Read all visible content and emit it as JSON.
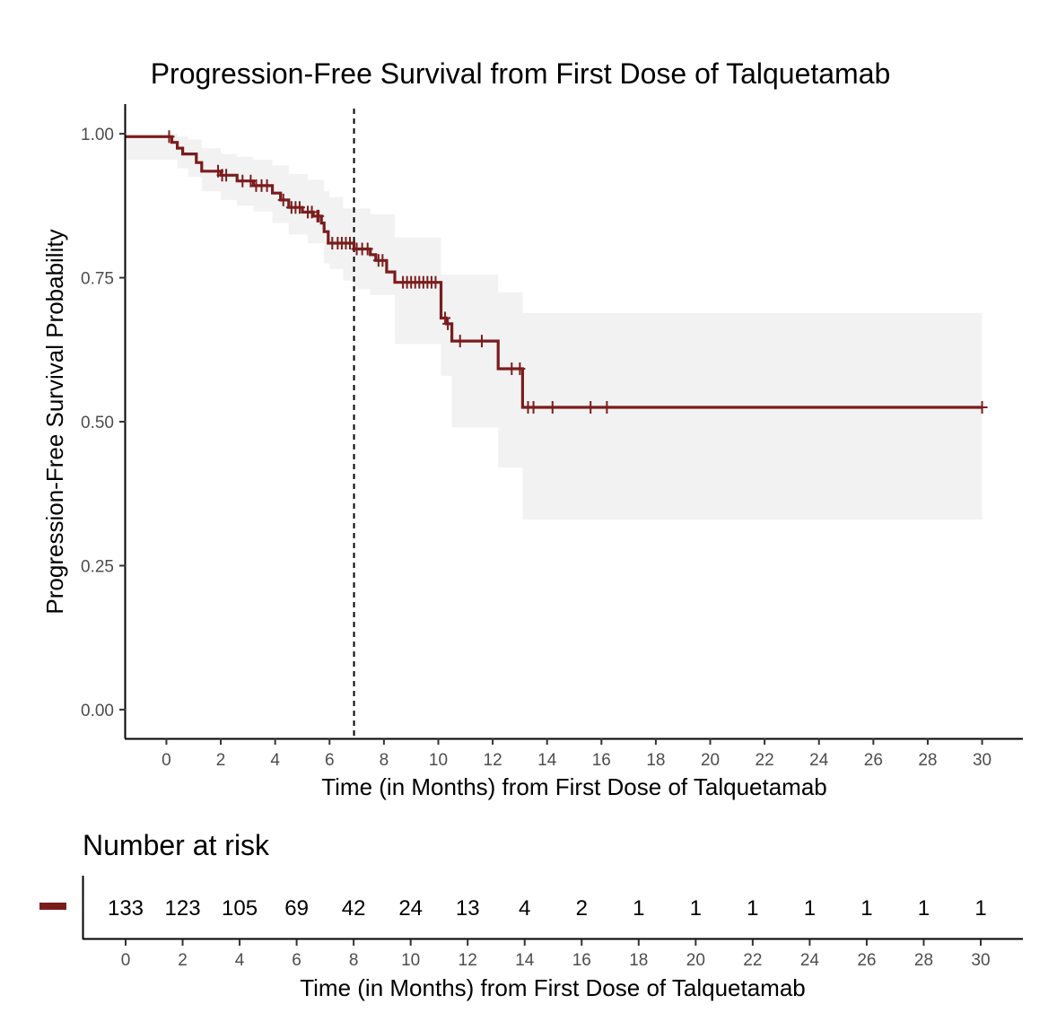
{
  "chart_data": [
    {
      "type": "line",
      "subtype": "kaplan-meier",
      "title": "Progression-Free Survival from First Dose of Talquetamab",
      "xlabel": "Time (in Months) from First Dose of Talquetamab",
      "ylabel": "Progression-Free Survival Probability",
      "xlim": [
        -1.5,
        31.5
      ],
      "ylim": [
        -0.05,
        1.05
      ],
      "xticks": [
        0,
        2,
        4,
        6,
        8,
        10,
        12,
        14,
        16,
        18,
        20,
        22,
        24,
        26,
        28,
        30
      ],
      "xtick_labels": [
        "0",
        "2",
        "4",
        "6",
        "8",
        "10",
        "12",
        "14",
        "16",
        "18",
        "20",
        "22",
        "24",
        "26",
        "28",
        "30"
      ],
      "yticks": [
        0,
        0.25,
        0.5,
        0.75,
        1.0
      ],
      "ytick_labels": [
        "0.00",
        "0.25",
        "0.50",
        "0.75",
        "1.00"
      ],
      "grid": false,
      "series_color": "#7b1c1c",
      "ci_color": "#f2f2f2",
      "reference_line": {
        "x": 6.9,
        "style": "dashed"
      },
      "series": [
        {
          "steps": [
            [
              -1.5,
              0.995
            ],
            [
              0.1,
              0.995
            ],
            [
              0.2,
              0.985
            ],
            [
              0.4,
              0.975
            ],
            [
              0.6,
              0.965
            ],
            [
              1.1,
              0.95
            ],
            [
              1.3,
              0.935
            ],
            [
              2.0,
              0.928
            ],
            [
              2.6,
              0.918
            ],
            [
              3.2,
              0.91
            ],
            [
              3.9,
              0.897
            ],
            [
              4.2,
              0.885
            ],
            [
              4.5,
              0.872
            ],
            [
              5.0,
              0.864
            ],
            [
              5.4,
              0.857
            ],
            [
              5.7,
              0.845
            ],
            [
              5.8,
              0.83
            ],
            [
              5.95,
              0.81
            ],
            [
              6.9,
              0.8
            ],
            [
              7.5,
              0.79
            ],
            [
              7.7,
              0.78
            ],
            [
              8.1,
              0.76
            ],
            [
              8.4,
              0.742
            ],
            [
              10.1,
              0.68
            ],
            [
              10.3,
              0.67
            ],
            [
              10.5,
              0.64
            ],
            [
              12.2,
              0.592
            ],
            [
              13.1,
              0.525
            ],
            [
              30.0,
              0.525
            ]
          ],
          "ci_steps": [
            [
              -1.5,
              1.0,
              0.955
            ],
            [
              0.0,
              1.0,
              0.955
            ],
            [
              0.4,
              0.995,
              0.94
            ],
            [
              0.8,
              0.99,
              0.925
            ],
            [
              1.3,
              0.975,
              0.9
            ],
            [
              2.0,
              0.965,
              0.885
            ],
            [
              2.6,
              0.96,
              0.875
            ],
            [
              3.2,
              0.955,
              0.865
            ],
            [
              3.9,
              0.945,
              0.845
            ],
            [
              4.5,
              0.93,
              0.825
            ],
            [
              5.2,
              0.92,
              0.81
            ],
            [
              5.8,
              0.9,
              0.775
            ],
            [
              6.0,
              0.89,
              0.765
            ],
            [
              6.5,
              0.87,
              0.745
            ],
            [
              6.9,
              0.87,
              0.73
            ],
            [
              7.5,
              0.86,
              0.72
            ],
            [
              8.4,
              0.82,
              0.635
            ],
            [
              10.1,
              0.755,
              0.58
            ],
            [
              10.5,
              0.755,
              0.49
            ],
            [
              12.2,
              0.725,
              0.42
            ],
            [
              13.1,
              0.689,
              0.33
            ],
            [
              30.0,
              0.689,
              0.33
            ]
          ],
          "censors": [
            0.1,
            1.9,
            2.05,
            2.2,
            2.8,
            3.1,
            3.3,
            3.5,
            3.7,
            4.3,
            4.6,
            4.75,
            4.9,
            5.2,
            5.35,
            5.55,
            5.6,
            6.1,
            6.3,
            6.45,
            6.6,
            6.75,
            7.0,
            7.2,
            7.4,
            7.8,
            7.95,
            8.7,
            8.85,
            9.0,
            9.15,
            9.3,
            9.45,
            9.6,
            9.75,
            9.9,
            10.25,
            10.35,
            10.8,
            11.6,
            12.7,
            13.0,
            13.3,
            13.5,
            14.2,
            15.6,
            16.2,
            30.0
          ]
        }
      ]
    },
    {
      "type": "table",
      "title": "Number at risk",
      "xlabel": "Time (in Months) from First Dose of Talquetamab",
      "times": [
        0,
        2,
        4,
        6,
        8,
        10,
        12,
        14,
        16,
        18,
        20,
        22,
        24,
        26,
        28,
        30
      ],
      "time_labels": [
        "0",
        "2",
        "4",
        "6",
        "8",
        "10",
        "12",
        "14",
        "16",
        "18",
        "20",
        "22",
        "24",
        "26",
        "28",
        "30"
      ],
      "values": [
        "133",
        "123",
        "105",
        "69",
        "42",
        "24",
        "13",
        "4",
        "2",
        "1",
        "1",
        "1",
        "1",
        "1",
        "1",
        "1"
      ],
      "strata_color": "#7b1c1c"
    }
  ]
}
